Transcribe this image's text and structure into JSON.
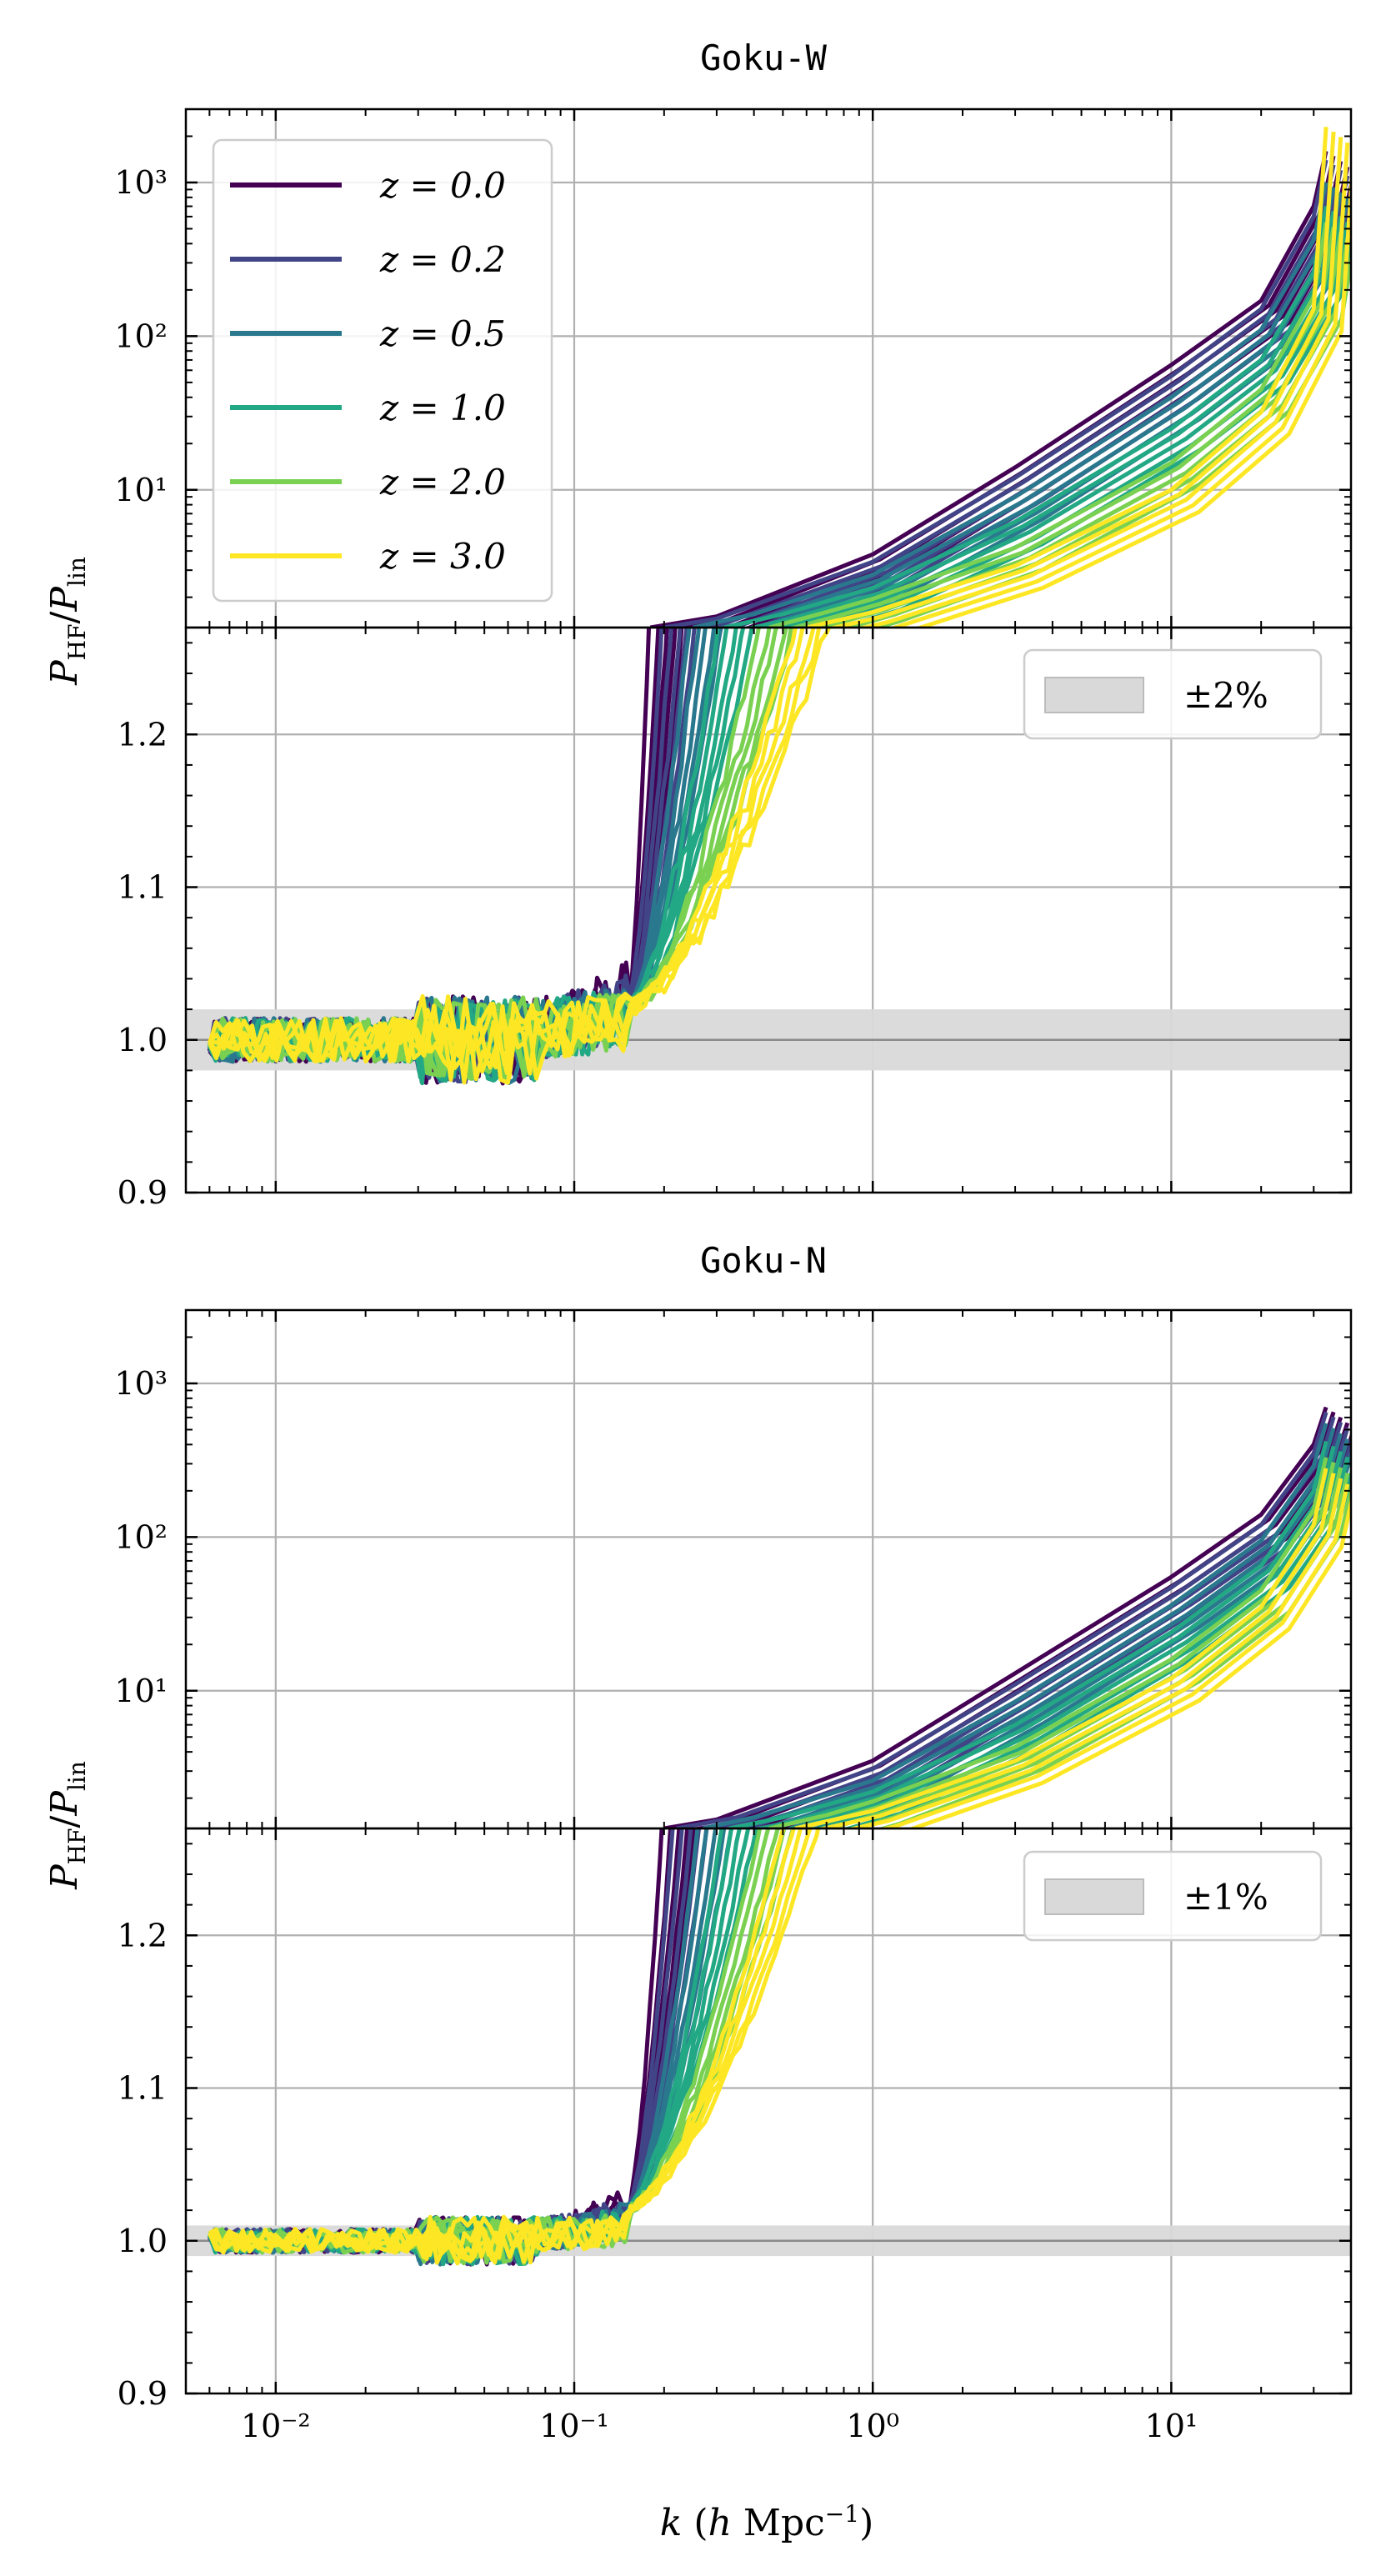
{
  "chart_data": [
    {
      "type": "line",
      "title": "Goku-W",
      "xlabel": "k (h Mpc⁻¹)",
      "xscale": "log",
      "xlim": [
        0.005,
        40
      ],
      "x_ticks": [
        {
          "value": 0.01,
          "label": "10⁻²"
        },
        {
          "value": 0.1,
          "label": "10⁻¹"
        },
        {
          "value": 1,
          "label": "10⁰"
        },
        {
          "value": 10,
          "label": "10¹"
        }
      ],
      "grid": true,
      "panels": [
        {
          "name": "upper",
          "yscale": "log",
          "ylabel": "P_HF/P_lin",
          "ylim": [
            1.27,
            3000
          ],
          "y_ticks": [
            {
              "value": 10,
              "label": "10¹"
            },
            {
              "value": 100,
              "label": "10²"
            },
            {
              "value": 1000,
              "label": "10³"
            }
          ],
          "legend": {
            "position": "top-left",
            "title_var": "z",
            "entries": [
              {
                "label": "z = 0.0",
                "color": "#440154"
              },
              {
                "label": "z = 0.2",
                "color": "#414487"
              },
              {
                "label": "z = 0.5",
                "color": "#2a788e"
              },
              {
                "label": "z = 1.0",
                "color": "#22a884"
              },
              {
                "label": "z = 2.0",
                "color": "#7ad151"
              },
              {
                "label": "z = 3.0",
                "color": "#fde725"
              }
            ]
          }
        },
        {
          "name": "lower",
          "yscale": "linear",
          "ylim": [
            0.9,
            1.27
          ],
          "y_ticks": [
            {
              "value": 0.9,
              "label": "0.9"
            },
            {
              "value": 1.0,
              "label": "1.0"
            },
            {
              "value": 1.1,
              "label": "1.1"
            },
            {
              "value": 1.2,
              "label": "1.2"
            }
          ],
          "band": {
            "label": "±2%",
            "lower": 0.98,
            "upper": 1.02,
            "color": "#d9d9d9"
          },
          "legend": {
            "position": "top-right"
          }
        }
      ],
      "series": [
        {
          "name": "z=0.0",
          "color": "#440154",
          "k_up": 0.18,
          "upper": [
            [
              0.18,
              1.27
            ],
            [
              0.3,
              1.5
            ],
            [
              1,
              3.8
            ],
            [
              3,
              14
            ],
            [
              10,
              65
            ],
            [
              20,
              170
            ],
            [
              30,
              700
            ],
            [
              33,
              1600
            ]
          ]
        },
        {
          "name": "z=0.2",
          "color": "#414487",
          "k_up": 0.2,
          "upper": [
            [
              0.2,
              1.27
            ],
            [
              0.3,
              1.45
            ],
            [
              1,
              3.4
            ],
            [
              3,
              12
            ],
            [
              10,
              55
            ],
            [
              20,
              150
            ],
            [
              30,
              600
            ],
            [
              33,
              1400
            ]
          ]
        },
        {
          "name": "z=0.5",
          "color": "#2a788e",
          "k_up": 0.25,
          "upper": [
            [
              0.25,
              1.27
            ],
            [
              0.4,
              1.55
            ],
            [
              1,
              2.8
            ],
            [
              3,
              9
            ],
            [
              10,
              40
            ],
            [
              20,
              110
            ],
            [
              30,
              420
            ],
            [
              33,
              1000
            ]
          ]
        },
        {
          "name": "z=1.0",
          "color": "#22a884",
          "k_up": 0.32,
          "upper": [
            [
              0.32,
              1.27
            ],
            [
              0.5,
              1.55
            ],
            [
              1,
              2.3
            ],
            [
              3,
              6.2
            ],
            [
              10,
              25
            ],
            [
              20,
              70
            ],
            [
              30,
              260
            ],
            [
              33,
              700
            ]
          ]
        },
        {
          "name": "z=2.0",
          "color": "#7ad151",
          "k_up": 0.45,
          "upper": [
            [
              0.45,
              1.27
            ],
            [
              0.7,
              1.6
            ],
            [
              1,
              1.95
            ],
            [
              3,
              4.2
            ],
            [
              10,
              15
            ],
            [
              20,
              45
            ],
            [
              30,
              180
            ],
            [
              33,
              550
            ]
          ]
        },
        {
          "name": "z=3.0",
          "color": "#fde725",
          "k_up": 0.6,
          "upper": [
            [
              0.6,
              1.27
            ],
            [
              1,
              1.6
            ],
            [
              3,
              3.2
            ],
            [
              10,
              10
            ],
            [
              20,
              32
            ],
            [
              30,
              150
            ],
            [
              33,
              2300
            ]
          ]
        }
      ]
    },
    {
      "type": "line",
      "title": "Goku-N",
      "xlabel": "k (h Mpc⁻¹)",
      "xscale": "log",
      "xlim": [
        0.005,
        40
      ],
      "x_ticks": [
        {
          "value": 0.01,
          "label": "10⁻²"
        },
        {
          "value": 0.1,
          "label": "10⁻¹"
        },
        {
          "value": 1,
          "label": "10⁰"
        },
        {
          "value": 10,
          "label": "10¹"
        }
      ],
      "grid": true,
      "panels": [
        {
          "name": "upper",
          "yscale": "log",
          "ylabel": "P_HF/P_lin",
          "ylim": [
            1.27,
            3000
          ],
          "y_ticks": [
            {
              "value": 10,
              "label": "10¹"
            },
            {
              "value": 100,
              "label": "10²"
            },
            {
              "value": 1000,
              "label": "10³"
            }
          ]
        },
        {
          "name": "lower",
          "yscale": "linear",
          "ylim": [
            0.9,
            1.27
          ],
          "y_ticks": [
            {
              "value": 0.9,
              "label": "0.9"
            },
            {
              "value": 1.0,
              "label": "1.0"
            },
            {
              "value": 1.1,
              "label": "1.1"
            },
            {
              "value": 1.2,
              "label": "1.2"
            }
          ],
          "band": {
            "label": "±1%",
            "lower": 0.99,
            "upper": 1.01,
            "color": "#d9d9d9"
          },
          "legend": {
            "position": "top-right"
          }
        }
      ],
      "series": [
        {
          "name": "z=0.0",
          "color": "#440154",
          "k_up": 0.2,
          "upper": [
            [
              0.2,
              1.27
            ],
            [
              0.3,
              1.45
            ],
            [
              1,
              3.5
            ],
            [
              3,
              13
            ],
            [
              10,
              55
            ],
            [
              20,
              140
            ],
            [
              30,
              400
            ],
            [
              33,
              700
            ]
          ]
        },
        {
          "name": "z=0.2",
          "color": "#414487",
          "k_up": 0.22,
          "upper": [
            [
              0.22,
              1.27
            ],
            [
              0.35,
              1.5
            ],
            [
              1,
              3.1
            ],
            [
              3,
              11
            ],
            [
              10,
              47
            ],
            [
              20,
              120
            ],
            [
              30,
              350
            ],
            [
              33,
              650
            ]
          ]
        },
        {
          "name": "z=0.5",
          "color": "#2a788e",
          "k_up": 0.27,
          "upper": [
            [
              0.27,
              1.27
            ],
            [
              0.4,
              1.5
            ],
            [
              1,
              2.6
            ],
            [
              3,
              8.5
            ],
            [
              10,
              36
            ],
            [
              20,
              95
            ],
            [
              30,
              290
            ],
            [
              33,
              550
            ]
          ]
        },
        {
          "name": "z=1.0",
          "color": "#22a884",
          "k_up": 0.33,
          "upper": [
            [
              0.33,
              1.27
            ],
            [
              0.5,
              1.5
            ],
            [
              1,
              2.2
            ],
            [
              3,
              6
            ],
            [
              10,
              24
            ],
            [
              20,
              65
            ],
            [
              30,
              200
            ],
            [
              33,
              420
            ]
          ]
        },
        {
          "name": "z=2.0",
          "color": "#7ad151",
          "k_up": 0.45,
          "upper": [
            [
              0.45,
              1.27
            ],
            [
              0.7,
              1.55
            ],
            [
              1,
              1.9
            ],
            [
              3,
              4.3
            ],
            [
              10,
              16
            ],
            [
              20,
              45
            ],
            [
              30,
              150
            ],
            [
              33,
              330
            ]
          ]
        },
        {
          "name": "z=3.0",
          "color": "#fde725",
          "k_up": 0.55,
          "upper": [
            [
              0.55,
              1.27
            ],
            [
              1,
              1.65
            ],
            [
              3,
              3.5
            ],
            [
              10,
              12
            ],
            [
              20,
              35
            ],
            [
              30,
              120
            ],
            [
              33,
              280
            ]
          ]
        }
      ]
    }
  ]
}
